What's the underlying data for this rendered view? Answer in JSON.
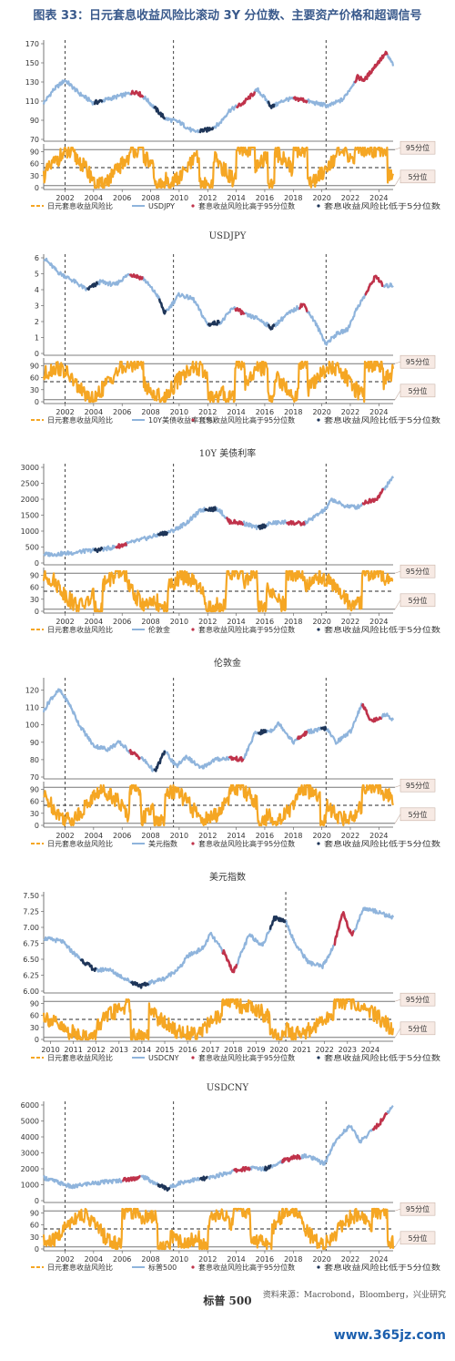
{
  "figure_title": "图表 33：日元套息收益风险比滚动 3Y 分位数、主要资产价格和超调信号",
  "source": "资料来源：Macrobond，Bloomberg，兴业研究",
  "watermark": "www.365jz.com",
  "colors": {
    "price": "#8fb4dc",
    "high": "#c0324a",
    "low": "#1e3558",
    "ratio": "#f5a623",
    "title": "#3a5a8c",
    "grid": "#888888"
  },
  "legend_common": {
    "ratio": "日元套息收益风险比",
    "high": "套息收益风险比高于95分位数",
    "low": "套息收益风险比低于5分位数"
  },
  "band_labels": [
    "95分位",
    "5分位"
  ],
  "panels": [
    {
      "caption": "USDJPY",
      "series_label": "USDJPY",
      "years": [
        "2002",
        "2004",
        "2006",
        "2008",
        "2010",
        "2012",
        "2014",
        "2016",
        "2018",
        "2020",
        "2022",
        "2024"
      ],
      "year_start": 2000.5,
      "year_end": 2025.0,
      "vlines": [
        2002.0,
        2009.6,
        2020.3
      ],
      "price_ticks": [
        "170",
        "150",
        "130",
        "110",
        "90",
        "70"
      ],
      "price_range": [
        70,
        170
      ],
      "ratio_ticks": [
        "90",
        "60",
        "30",
        "0"
      ],
      "price_path": [
        [
          2000.5,
          108
        ],
        [
          2001.2,
          122
        ],
        [
          2002.0,
          132
        ],
        [
          2003.0,
          118
        ],
        [
          2004.0,
          108
        ],
        [
          2005.0,
          112
        ],
        [
          2006.0,
          116
        ],
        [
          2007.0,
          120
        ],
        [
          2007.7,
          112
        ],
        [
          2008.6,
          98
        ],
        [
          2009.0,
          92
        ],
        [
          2010.0,
          88
        ],
        [
          2011.0,
          78
        ],
        [
          2012.0,
          80
        ],
        [
          2012.8,
          86
        ],
        [
          2013.5,
          100
        ],
        [
          2014.5,
          108
        ],
        [
          2015.5,
          122
        ],
        [
          2016.5,
          104
        ],
        [
          2017.5,
          112
        ],
        [
          2018.5,
          112
        ],
        [
          2019.5,
          108
        ],
        [
          2020.5,
          105
        ],
        [
          2021.5,
          112
        ],
        [
          2022.5,
          135
        ],
        [
          2023.0,
          132
        ],
        [
          2023.8,
          148
        ],
        [
          2024.5,
          160
        ],
        [
          2025.0,
          148
        ]
      ],
      "high_segments": [
        [
          2006.6,
          2007.5
        ],
        [
          2014.0,
          2015.3
        ],
        [
          2018.0,
          2019.0
        ],
        [
          2022.3,
          2024.6
        ]
      ],
      "low_segments": [
        [
          2004.0,
          2004.6
        ],
        [
          2008.2,
          2009.0
        ],
        [
          2011.4,
          2012.4
        ],
        [
          2016.2,
          2016.7
        ]
      ]
    },
    {
      "caption": "10Y 美债利率",
      "series_label": "10Y美债收益率（%）",
      "years": [
        "2002",
        "2004",
        "2006",
        "2008",
        "2010",
        "2012",
        "2014",
        "2016",
        "2018",
        "2020",
        "2022",
        "2024"
      ],
      "year_start": 2000.5,
      "year_end": 2025.0,
      "vlines": [
        2002.0,
        2009.6,
        2020.3
      ],
      "price_ticks": [
        "6",
        "5",
        "4",
        "3",
        "2",
        "1",
        "0"
      ],
      "price_range": [
        0,
        6
      ],
      "ratio_ticks": [
        "90",
        "60",
        "30",
        "0"
      ],
      "price_path": [
        [
          2000.5,
          6.0
        ],
        [
          2001.5,
          5.1
        ],
        [
          2002.5,
          4.6
        ],
        [
          2003.5,
          4.0
        ],
        [
          2004.5,
          4.5
        ],
        [
          2005.5,
          4.3
        ],
        [
          2006.5,
          5.0
        ],
        [
          2007.5,
          4.7
        ],
        [
          2008.5,
          3.6
        ],
        [
          2009.0,
          2.5
        ],
        [
          2010.0,
          3.7
        ],
        [
          2011.0,
          3.4
        ],
        [
          2012.0,
          1.8
        ],
        [
          2013.0,
          2.0
        ],
        [
          2013.8,
          2.9
        ],
        [
          2014.7,
          2.4
        ],
        [
          2015.5,
          2.2
        ],
        [
          2016.5,
          1.6
        ],
        [
          2017.5,
          2.4
        ],
        [
          2018.7,
          3.1
        ],
        [
          2019.5,
          2.0
        ],
        [
          2020.3,
          0.6
        ],
        [
          2021.0,
          1.2
        ],
        [
          2021.8,
          1.5
        ],
        [
          2022.5,
          2.9
        ],
        [
          2023.0,
          3.6
        ],
        [
          2023.8,
          4.9
        ],
        [
          2024.3,
          4.2
        ],
        [
          2025.0,
          4.3
        ]
      ],
      "high_segments": [
        [
          2006.5,
          2007.5
        ],
        [
          2013.9,
          2014.6
        ],
        [
          2018.4,
          2019.0
        ],
        [
          2023.0,
          2024.3
        ]
      ],
      "low_segments": [
        [
          2003.5,
          2004.3
        ],
        [
          2008.6,
          2009.1
        ],
        [
          2012.0,
          2012.8
        ],
        [
          2016.2,
          2016.7
        ]
      ]
    },
    {
      "caption": "伦敦金",
      "series_label": "伦敦金",
      "years": [
        "2002",
        "2004",
        "2006",
        "2008",
        "2010",
        "2012",
        "2014",
        "2016",
        "2018",
        "2020",
        "2022",
        "2024"
      ],
      "year_start": 2000.5,
      "year_end": 2025.0,
      "vlines": [
        2002.0,
        2009.6,
        2020.3
      ],
      "price_ticks": [
        "3000",
        "2500",
        "2000",
        "1500",
        "1000",
        "500",
        "0"
      ],
      "price_range": [
        0,
        3000
      ],
      "ratio_ticks": [
        "90",
        "60",
        "30",
        "0"
      ],
      "price_path": [
        [
          2000.5,
          270
        ],
        [
          2001.5,
          280
        ],
        [
          2002.5,
          320
        ],
        [
          2003.5,
          380
        ],
        [
          2004.5,
          420
        ],
        [
          2005.5,
          500
        ],
        [
          2006.5,
          620
        ],
        [
          2007.5,
          750
        ],
        [
          2008.5,
          880
        ],
        [
          2009.5,
          1000
        ],
        [
          2010.5,
          1250
        ],
        [
          2011.5,
          1650
        ],
        [
          2012.0,
          1700
        ],
        [
          2012.8,
          1680
        ],
        [
          2013.5,
          1300
        ],
        [
          2014.5,
          1250
        ],
        [
          2015.5,
          1100
        ],
        [
          2016.5,
          1250
        ],
        [
          2017.5,
          1280
        ],
        [
          2018.7,
          1220
        ],
        [
          2019.5,
          1450
        ],
        [
          2020.3,
          1700
        ],
        [
          2020.7,
          2000
        ],
        [
          2021.5,
          1800
        ],
        [
          2022.5,
          1750
        ],
        [
          2023.0,
          1900
        ],
        [
          2023.8,
          2000
        ],
        [
          2024.5,
          2400
        ],
        [
          2025.0,
          2700
        ]
      ],
      "high_segments": [
        [
          2005.5,
          2006.3
        ],
        [
          2013.3,
          2014.5
        ],
        [
          2017.5,
          2018.8
        ],
        [
          2022.8,
          2024.3
        ]
      ],
      "low_segments": [
        [
          2004.0,
          2004.6
        ],
        [
          2008.5,
          2009.2
        ],
        [
          2011.8,
          2012.6
        ],
        [
          2015.5,
          2016.1
        ]
      ]
    },
    {
      "caption": "美元指数",
      "series_label": "美元指数",
      "years": [
        "2002",
        "2004",
        "2006",
        "2008",
        "2010",
        "2012",
        "2014",
        "2016",
        "2018",
        "2020",
        "2022",
        "2024"
      ],
      "year_start": 2000.5,
      "year_end": 2025.0,
      "vlines": [
        2002.0,
        2009.6,
        2020.3
      ],
      "price_ticks": [
        "120",
        "110",
        "100",
        "90",
        "80",
        "70"
      ],
      "price_range": [
        70,
        125
      ],
      "ratio_ticks": [
        "90",
        "60",
        "30",
        "0"
      ],
      "price_path": [
        [
          2000.5,
          108
        ],
        [
          2001.0,
          115
        ],
        [
          2001.6,
          120
        ],
        [
          2002.3,
          112
        ],
        [
          2003.0,
          100
        ],
        [
          2004.0,
          88
        ],
        [
          2005.0,
          86
        ],
        [
          2005.8,
          90
        ],
        [
          2006.5,
          85
        ],
        [
          2007.5,
          80
        ],
        [
          2008.3,
          73
        ],
        [
          2009.0,
          85
        ],
        [
          2009.8,
          76
        ],
        [
          2010.5,
          82
        ],
        [
          2011.5,
          75
        ],
        [
          2012.5,
          80
        ],
        [
          2013.5,
          81
        ],
        [
          2014.5,
          80
        ],
        [
          2015.3,
          95
        ],
        [
          2016.5,
          97
        ],
        [
          2017.0,
          101
        ],
        [
          2018.0,
          90
        ],
        [
          2019.0,
          96
        ],
        [
          2020.3,
          98
        ],
        [
          2021.0,
          90
        ],
        [
          2022.0,
          96
        ],
        [
          2022.8,
          112
        ],
        [
          2023.5,
          102
        ],
        [
          2024.5,
          106
        ],
        [
          2025.0,
          103
        ]
      ],
      "high_segments": [
        [
          2006.5,
          2007.3
        ],
        [
          2013.5,
          2014.5
        ],
        [
          2018.3,
          2019.0
        ],
        [
          2022.8,
          2024.2
        ]
      ],
      "low_segments": [
        [
          2008.2,
          2009.0
        ],
        [
          2015.5,
          2016.1
        ],
        [
          2019.9,
          2020.3
        ]
      ]
    },
    {
      "caption": "USDCNY",
      "series_label": "USDCNY",
      "years": [
        "2010",
        "2011",
        "2012",
        "2013",
        "2014",
        "2015",
        "2016",
        "2017",
        "2018",
        "2019",
        "2020",
        "2021",
        "2022",
        "2023",
        "2024"
      ],
      "year_start": 2009.7,
      "year_end": 2025.0,
      "vlines": [
        2020.3
      ],
      "price_ticks": [
        "7.50",
        "7.25",
        "7.00",
        "6.75",
        "6.50",
        "6.25",
        "6.00"
      ],
      "price_range": [
        6.0,
        7.5
      ],
      "ratio_ticks": [
        "90",
        "60",
        "30",
        "0"
      ],
      "price_path": [
        [
          2009.7,
          6.83
        ],
        [
          2010.5,
          6.78
        ],
        [
          2011.0,
          6.6
        ],
        [
          2011.5,
          6.45
        ],
        [
          2012.0,
          6.32
        ],
        [
          2012.5,
          6.35
        ],
        [
          2013.0,
          6.25
        ],
        [
          2013.5,
          6.15
        ],
        [
          2014.0,
          6.08
        ],
        [
          2014.5,
          6.15
        ],
        [
          2015.0,
          6.2
        ],
        [
          2015.7,
          6.38
        ],
        [
          2016.0,
          6.55
        ],
        [
          2016.7,
          6.68
        ],
        [
          2017.0,
          6.9
        ],
        [
          2017.6,
          6.6
        ],
        [
          2018.0,
          6.3
        ],
        [
          2018.7,
          6.88
        ],
        [
          2019.3,
          6.72
        ],
        [
          2019.8,
          7.15
        ],
        [
          2020.3,
          7.1
        ],
        [
          2020.7,
          6.75
        ],
        [
          2021.3,
          6.45
        ],
        [
          2021.9,
          6.38
        ],
        [
          2022.4,
          6.7
        ],
        [
          2022.8,
          7.25
        ],
        [
          2023.2,
          6.85
        ],
        [
          2023.7,
          7.3
        ],
        [
          2024.3,
          7.25
        ],
        [
          2025.0,
          7.15
        ]
      ],
      "high_segments": [
        [
          2017.5,
          2018.2
        ],
        [
          2022.4,
          2023.3
        ]
      ],
      "low_segments": [
        [
          2011.3,
          2012.0
        ],
        [
          2013.5,
          2014.3
        ],
        [
          2019.6,
          2020.3
        ]
      ]
    },
    {
      "caption": "标普 500",
      "series_label": "标普500",
      "years": [
        "2002",
        "2004",
        "2006",
        "2008",
        "2010",
        "2012",
        "2014",
        "2016",
        "2018",
        "2020",
        "2022",
        "2024"
      ],
      "year_start": 2000.5,
      "year_end": 2025.0,
      "vlines": [
        2002.0,
        2009.6,
        2020.3
      ],
      "price_ticks": [
        "6000",
        "5000",
        "4000",
        "3000",
        "2000",
        "1000",
        "0"
      ],
      "price_range": [
        0,
        6000
      ],
      "ratio_ticks": [
        "90",
        "60",
        "30",
        "0"
      ],
      "price_path": [
        [
          2000.5,
          1450
        ],
        [
          2001.5,
          1150
        ],
        [
          2002.5,
          850
        ],
        [
          2003.5,
          1050
        ],
        [
          2004.5,
          1150
        ],
        [
          2005.5,
          1230
        ],
        [
          2006.5,
          1350
        ],
        [
          2007.5,
          1500
        ],
        [
          2008.5,
          1000
        ],
        [
          2009.2,
          750
        ],
        [
          2010.0,
          1120
        ],
        [
          2011.0,
          1300
        ],
        [
          2012.0,
          1400
        ],
        [
          2013.0,
          1650
        ],
        [
          2014.0,
          1900
        ],
        [
          2015.0,
          2050
        ],
        [
          2016.0,
          2000
        ],
        [
          2017.0,
          2400
        ],
        [
          2018.0,
          2700
        ],
        [
          2019.0,
          2800
        ],
        [
          2020.2,
          2300
        ],
        [
          2020.8,
          3500
        ],
        [
          2021.5,
          4300
        ],
        [
          2022.0,
          4700
        ],
        [
          2022.7,
          3700
        ],
        [
          2023.5,
          4400
        ],
        [
          2024.0,
          4800
        ],
        [
          2024.6,
          5500
        ],
        [
          2025.0,
          5950
        ]
      ],
      "high_segments": [
        [
          2006.0,
          2007.3
        ],
        [
          2013.8,
          2015.0
        ],
        [
          2017.2,
          2018.5
        ],
        [
          2023.5,
          2024.6
        ]
      ],
      "low_segments": [
        [
          2008.5,
          2009.4
        ],
        [
          2011.4,
          2012.0
        ],
        [
          2016.0,
          2016.5
        ]
      ]
    }
  ]
}
